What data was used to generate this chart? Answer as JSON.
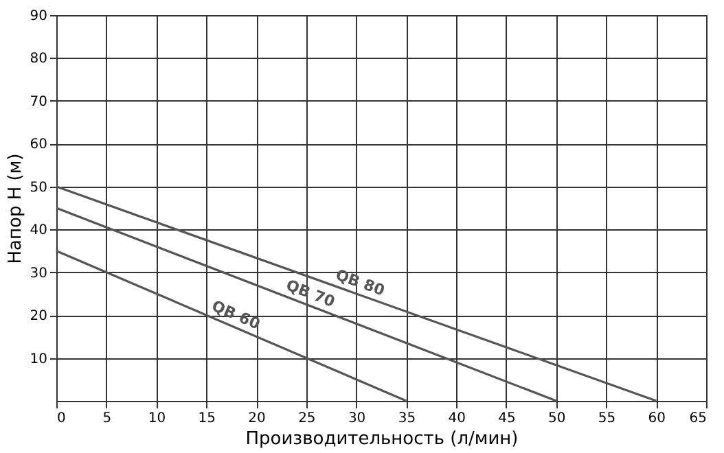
{
  "chart_data": {
    "type": "line",
    "xlabel": "Производительность (л/мин)",
    "ylabel": "Напор  H (м)",
    "series": [
      {
        "name": "QB 60",
        "color": "#555555",
        "x": [
          0,
          35
        ],
        "values": [
          35,
          0
        ]
      },
      {
        "name": "QB 70",
        "color": "#555555",
        "x": [
          0,
          50
        ],
        "values": [
          45,
          0
        ]
      },
      {
        "name": "QB 80",
        "color": "#555555",
        "x": [
          0,
          60
        ],
        "values": [
          50,
          0
        ]
      }
    ],
    "xlim": [
      0,
      65
    ],
    "xticks": [
      0,
      5,
      10,
      15,
      20,
      25,
      30,
      35,
      40,
      45,
      50,
      55,
      60,
      65
    ],
    "ylim": [
      0,
      90
    ],
    "yticks": [
      10,
      20,
      30,
      40,
      50,
      60,
      70,
      80,
      90
    ],
    "grid": true,
    "marker": "none",
    "line_style": "solid",
    "legend": false
  }
}
